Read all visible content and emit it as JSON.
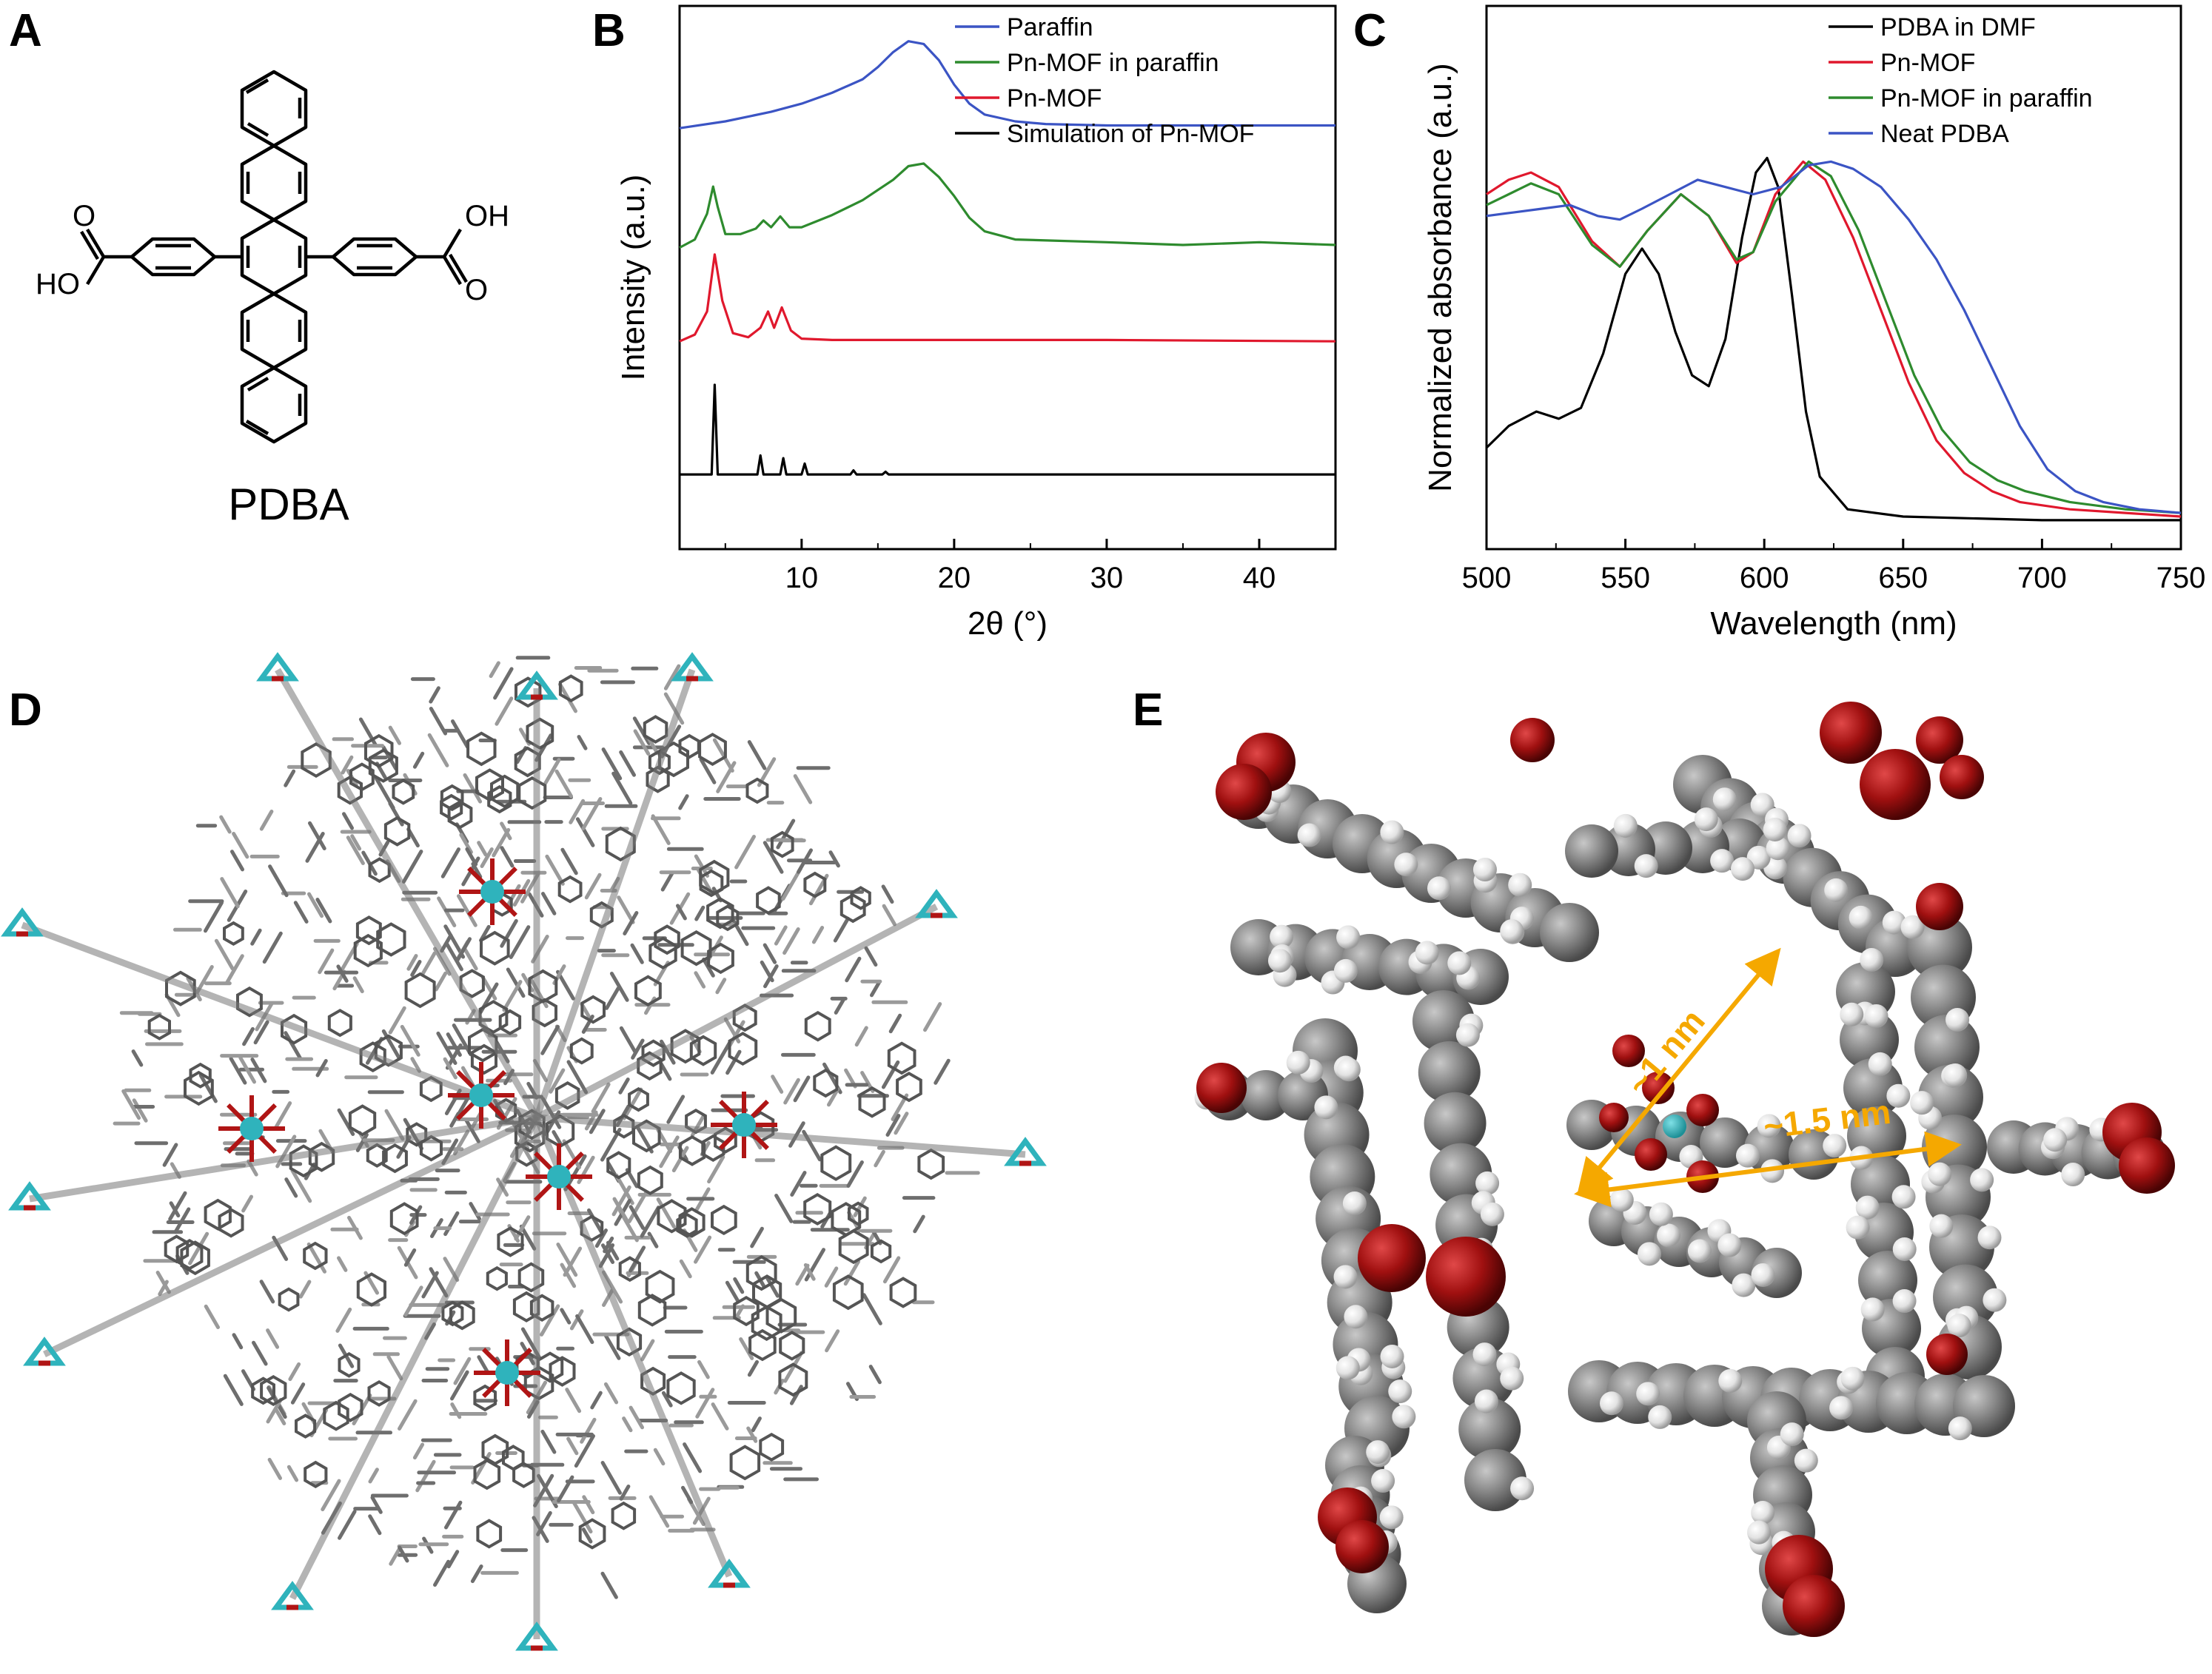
{
  "panels": {
    "a": {
      "label": "A",
      "compound_name": "PDBA",
      "oh_left": "HO",
      "oh_right": "OH"
    },
    "b": {
      "label": "B"
    },
    "c": {
      "label": "C"
    },
    "d": {
      "label": "D"
    },
    "e": {
      "label": "E",
      "annotation_1": "~1 nm",
      "annotation_2": "~1.5 nm"
    }
  },
  "colors": {
    "blue": "#3b54c4",
    "green": "#2e8b2e",
    "red": "#e0182d",
    "black": "#000000",
    "carbon": "#7a7a7a",
    "oxygen": "#b01515",
    "zirconium": "#2fb3bc",
    "hydrogen": "#e6e6e6",
    "arrow": "#f5a800"
  },
  "chart_data": [
    {
      "type": "line",
      "panel": "B",
      "xlabel": "2θ (°)",
      "ylabel": "Intensity (a.u.)",
      "xlim": [
        2,
        45
      ],
      "xticks": [
        10,
        20,
        30,
        40
      ],
      "yticks": [],
      "legend_position": "top-right",
      "series": [
        {
          "name": "Paraffin",
          "color": "#3b54c4",
          "offset": 2.55,
          "x": [
            2,
            5,
            8,
            10,
            12,
            14,
            15,
            16,
            17,
            18,
            19,
            20,
            21,
            22,
            24,
            26,
            30,
            35,
            40,
            45
          ],
          "y": [
            0.0,
            0.05,
            0.12,
            0.18,
            0.26,
            0.36,
            0.45,
            0.56,
            0.64,
            0.62,
            0.5,
            0.32,
            0.18,
            0.1,
            0.05,
            0.03,
            0.02,
            0.02,
            0.02,
            0.02
          ]
        },
        {
          "name": "Pn-MOF in paraffin",
          "color": "#2e8b2e",
          "offset": 1.67,
          "x": [
            2,
            3,
            3.8,
            4.2,
            4.5,
            5,
            6,
            7,
            7.5,
            8,
            8.6,
            9.2,
            10,
            12,
            14,
            16,
            17,
            18,
            19,
            20,
            21,
            22,
            24,
            30,
            35,
            40,
            45
          ],
          "y": [
            0.0,
            0.06,
            0.25,
            0.45,
            0.3,
            0.1,
            0.1,
            0.14,
            0.2,
            0.15,
            0.23,
            0.15,
            0.15,
            0.24,
            0.35,
            0.5,
            0.6,
            0.62,
            0.52,
            0.38,
            0.22,
            0.12,
            0.06,
            0.04,
            0.02,
            0.04,
            0.02
          ]
        },
        {
          "name": "Pn-MOF",
          "color": "#e0182d",
          "offset": 0.98,
          "x": [
            2,
            3,
            3.8,
            4.3,
            4.8,
            5.5,
            6.5,
            7.3,
            7.8,
            8.2,
            8.7,
            9.3,
            10,
            12,
            20,
            30,
            45
          ],
          "y": [
            0.0,
            0.05,
            0.22,
            0.64,
            0.3,
            0.06,
            0.03,
            0.1,
            0.22,
            0.1,
            0.25,
            0.08,
            0.02,
            0.01,
            0.01,
            0.01,
            0.0
          ]
        },
        {
          "name": "Simulation of Pn-MOF",
          "color": "#000000",
          "offset": 0.0,
          "x": [
            2,
            4.1,
            4.3,
            4.5,
            7.1,
            7.3,
            7.5,
            8.6,
            8.8,
            9.0,
            10.0,
            10.2,
            10.4,
            13.2,
            13.4,
            13.6,
            15.3,
            15.5,
            15.7,
            45
          ],
          "y": [
            0.0,
            0.0,
            0.66,
            0.0,
            0.0,
            0.14,
            0.0,
            0.0,
            0.12,
            0.0,
            0.0,
            0.08,
            0.0,
            0.0,
            0.03,
            0.0,
            0.0,
            0.02,
            0.0,
            0.0
          ]
        }
      ]
    },
    {
      "type": "line",
      "panel": "C",
      "xlabel": "Wavelength (nm)",
      "ylabel": "Normalized absorbance (a.u.)",
      "xlim": [
        500,
        750
      ],
      "ylim": [
        0,
        1.12
      ],
      "xticks": [
        500,
        550,
        600,
        650,
        700,
        750
      ],
      "yticks": [],
      "legend_position": "top-right",
      "series": [
        {
          "name": "PDBA in DMF",
          "color": "#000000",
          "x": [
            500,
            508,
            518,
            526,
            534,
            542,
            550,
            556,
            562,
            568,
            574,
            580,
            586,
            592,
            597,
            601,
            605,
            610,
            615,
            620,
            630,
            650,
            700,
            750
          ],
          "y": [
            0.2,
            0.26,
            0.3,
            0.28,
            0.31,
            0.46,
            0.68,
            0.75,
            0.68,
            0.52,
            0.4,
            0.37,
            0.5,
            0.78,
            0.96,
            1.0,
            0.92,
            0.62,
            0.3,
            0.12,
            0.03,
            0.01,
            0.0,
            0.0
          ]
        },
        {
          "name": "Pn-MOF",
          "color": "#e0182d",
          "x": [
            500,
            508,
            516,
            526,
            538,
            548,
            558,
            570,
            580,
            590,
            596,
            604,
            614,
            622,
            632,
            642,
            652,
            662,
            672,
            682,
            692,
            710,
            730,
            750
          ],
          "y": [
            0.9,
            0.94,
            0.96,
            0.92,
            0.77,
            0.7,
            0.8,
            0.9,
            0.84,
            0.71,
            0.74,
            0.9,
            0.99,
            0.94,
            0.78,
            0.58,
            0.38,
            0.22,
            0.13,
            0.08,
            0.05,
            0.03,
            0.02,
            0.01
          ]
        },
        {
          "name": "Pn-MOF in paraffin",
          "color": "#2e8b2e",
          "x": [
            500,
            508,
            516,
            526,
            538,
            548,
            558,
            570,
            580,
            590,
            596,
            604,
            616,
            624,
            634,
            644,
            654,
            664,
            674,
            684,
            694,
            710,
            730,
            750
          ],
          "y": [
            0.87,
            0.9,
            0.93,
            0.9,
            0.76,
            0.7,
            0.8,
            0.9,
            0.84,
            0.72,
            0.74,
            0.88,
            0.99,
            0.95,
            0.8,
            0.6,
            0.4,
            0.25,
            0.16,
            0.11,
            0.08,
            0.05,
            0.03,
            0.02
          ]
        },
        {
          "name": "Neat PDBA",
          "color": "#3b54c4",
          "x": [
            500,
            510,
            520,
            530,
            540,
            548,
            556,
            566,
            576,
            586,
            596,
            606,
            616,
            624,
            632,
            642,
            652,
            662,
            672,
            682,
            692,
            702,
            712,
            722,
            735,
            750
          ],
          "y": [
            0.84,
            0.85,
            0.86,
            0.87,
            0.84,
            0.83,
            0.86,
            0.9,
            0.94,
            0.92,
            0.9,
            0.92,
            0.98,
            0.99,
            0.97,
            0.92,
            0.83,
            0.72,
            0.58,
            0.42,
            0.26,
            0.14,
            0.08,
            0.05,
            0.03,
            0.02
          ]
        }
      ]
    }
  ]
}
